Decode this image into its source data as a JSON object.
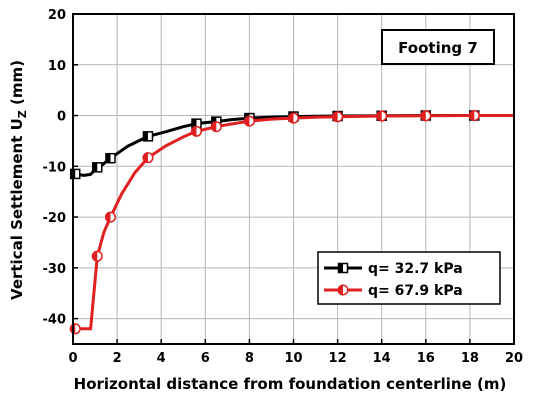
{
  "chart_data": {
    "type": "line",
    "xlabel": "Horizontal distance from foundation centerline (m)",
    "ylabel_main": "Vertical Settlement U",
    "ylabel_sub": "Z",
    "ylabel_unit": " (mm)",
    "annotation": "Footing 7",
    "xlim": [
      0,
      20
    ],
    "ylim": [
      -45,
      20
    ],
    "xticks": [
      0,
      2,
      4,
      6,
      8,
      10,
      12,
      14,
      16,
      18,
      20
    ],
    "yticks": [
      -40,
      -30,
      -20,
      -10,
      0,
      10,
      20
    ],
    "grid": true,
    "legend_position": "bottom-right",
    "series": [
      {
        "name": "q= 32.7 kPa",
        "color": "#000000",
        "marker": "half-filled-square",
        "x": [
          0,
          0.5,
          0.8,
          1.1,
          1.3,
          1.7,
          2.5,
          3.4,
          4.2,
          5.0,
          5.6,
          6.0,
          6.5,
          7.2,
          8.0,
          9.0,
          10.0,
          11.0,
          12.0,
          14.0,
          16.0,
          18.2,
          20.0
        ],
        "y": [
          -11.5,
          -11.8,
          -11.6,
          -10.2,
          -9.8,
          -8.4,
          -6.0,
          -4.1,
          -3.2,
          -2.2,
          -1.6,
          -1.4,
          -1.2,
          -0.8,
          -0.5,
          -0.3,
          -0.2,
          -0.15,
          -0.1,
          -0.05,
          0,
          0,
          0
        ],
        "marker_x": [
          0.1,
          1.1,
          1.7,
          3.4,
          5.6,
          6.5,
          8.0,
          10.0,
          12.0,
          14.0,
          16.0,
          18.2
        ],
        "marker_y": [
          -11.5,
          -10.2,
          -8.4,
          -4.1,
          -1.6,
          -1.2,
          -0.5,
          -0.2,
          -0.1,
          -0.05,
          0,
          0
        ]
      },
      {
        "name": "q= 67.9 kPa",
        "color": "#e02020",
        "marker": "half-filled-circle",
        "x": [
          0,
          0.3,
          0.6,
          0.8,
          1.1,
          1.4,
          1.7,
          2.2,
          2.8,
          3.4,
          4.2,
          5.0,
          5.6,
          6.5,
          7.0,
          8.0,
          9.0,
          10.0,
          11.0,
          12.0,
          14.0,
          16.0,
          18.2,
          20.0
        ],
        "y": [
          -42,
          -42,
          -42,
          -42,
          -27.7,
          -23.0,
          -20.0,
          -15.5,
          -11.3,
          -8.3,
          -6.0,
          -4.2,
          -3.1,
          -2.2,
          -1.8,
          -1.1,
          -0.7,
          -0.5,
          -0.35,
          -0.25,
          -0.1,
          -0.05,
          0,
          0
        ],
        "marker_x": [
          0.1,
          1.1,
          1.7,
          3.4,
          5.6,
          6.5,
          8.0,
          10.0,
          12.0,
          14.0,
          16.0,
          18.2
        ],
        "marker_y": [
          -42,
          -27.7,
          -20.0,
          -8.3,
          -3.1,
          -2.2,
          -1.1,
          -0.5,
          -0.25,
          -0.1,
          -0.05,
          0
        ]
      }
    ]
  }
}
